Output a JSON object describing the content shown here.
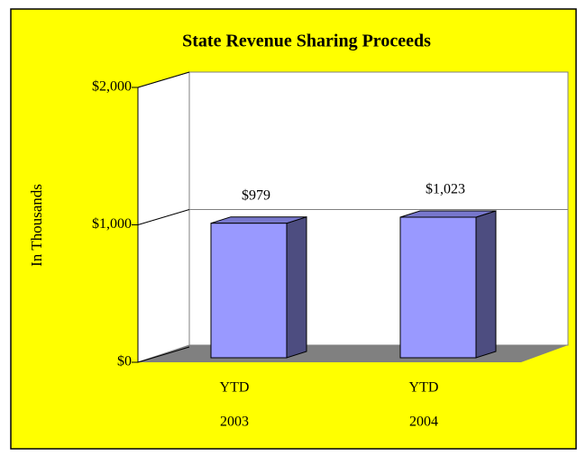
{
  "chart_data": {
    "type": "bar3d",
    "title": "State Revenue Sharing Proceeds",
    "y_label": "In Thousands",
    "categories": [
      [
        "YTD",
        "2003"
      ],
      [
        "YTD",
        "2004"
      ]
    ],
    "values": [
      979,
      1023
    ],
    "value_labels": [
      "$979",
      "$1,023"
    ],
    "color": "#9999ff",
    "ylim": [
      0,
      2000
    ],
    "yticks": [
      {
        "value": 0,
        "label": "$0"
      },
      {
        "value": 1000,
        "label": "$1,000"
      },
      {
        "value": 2000,
        "label": "$2,000"
      }
    ],
    "grid": true
  }
}
